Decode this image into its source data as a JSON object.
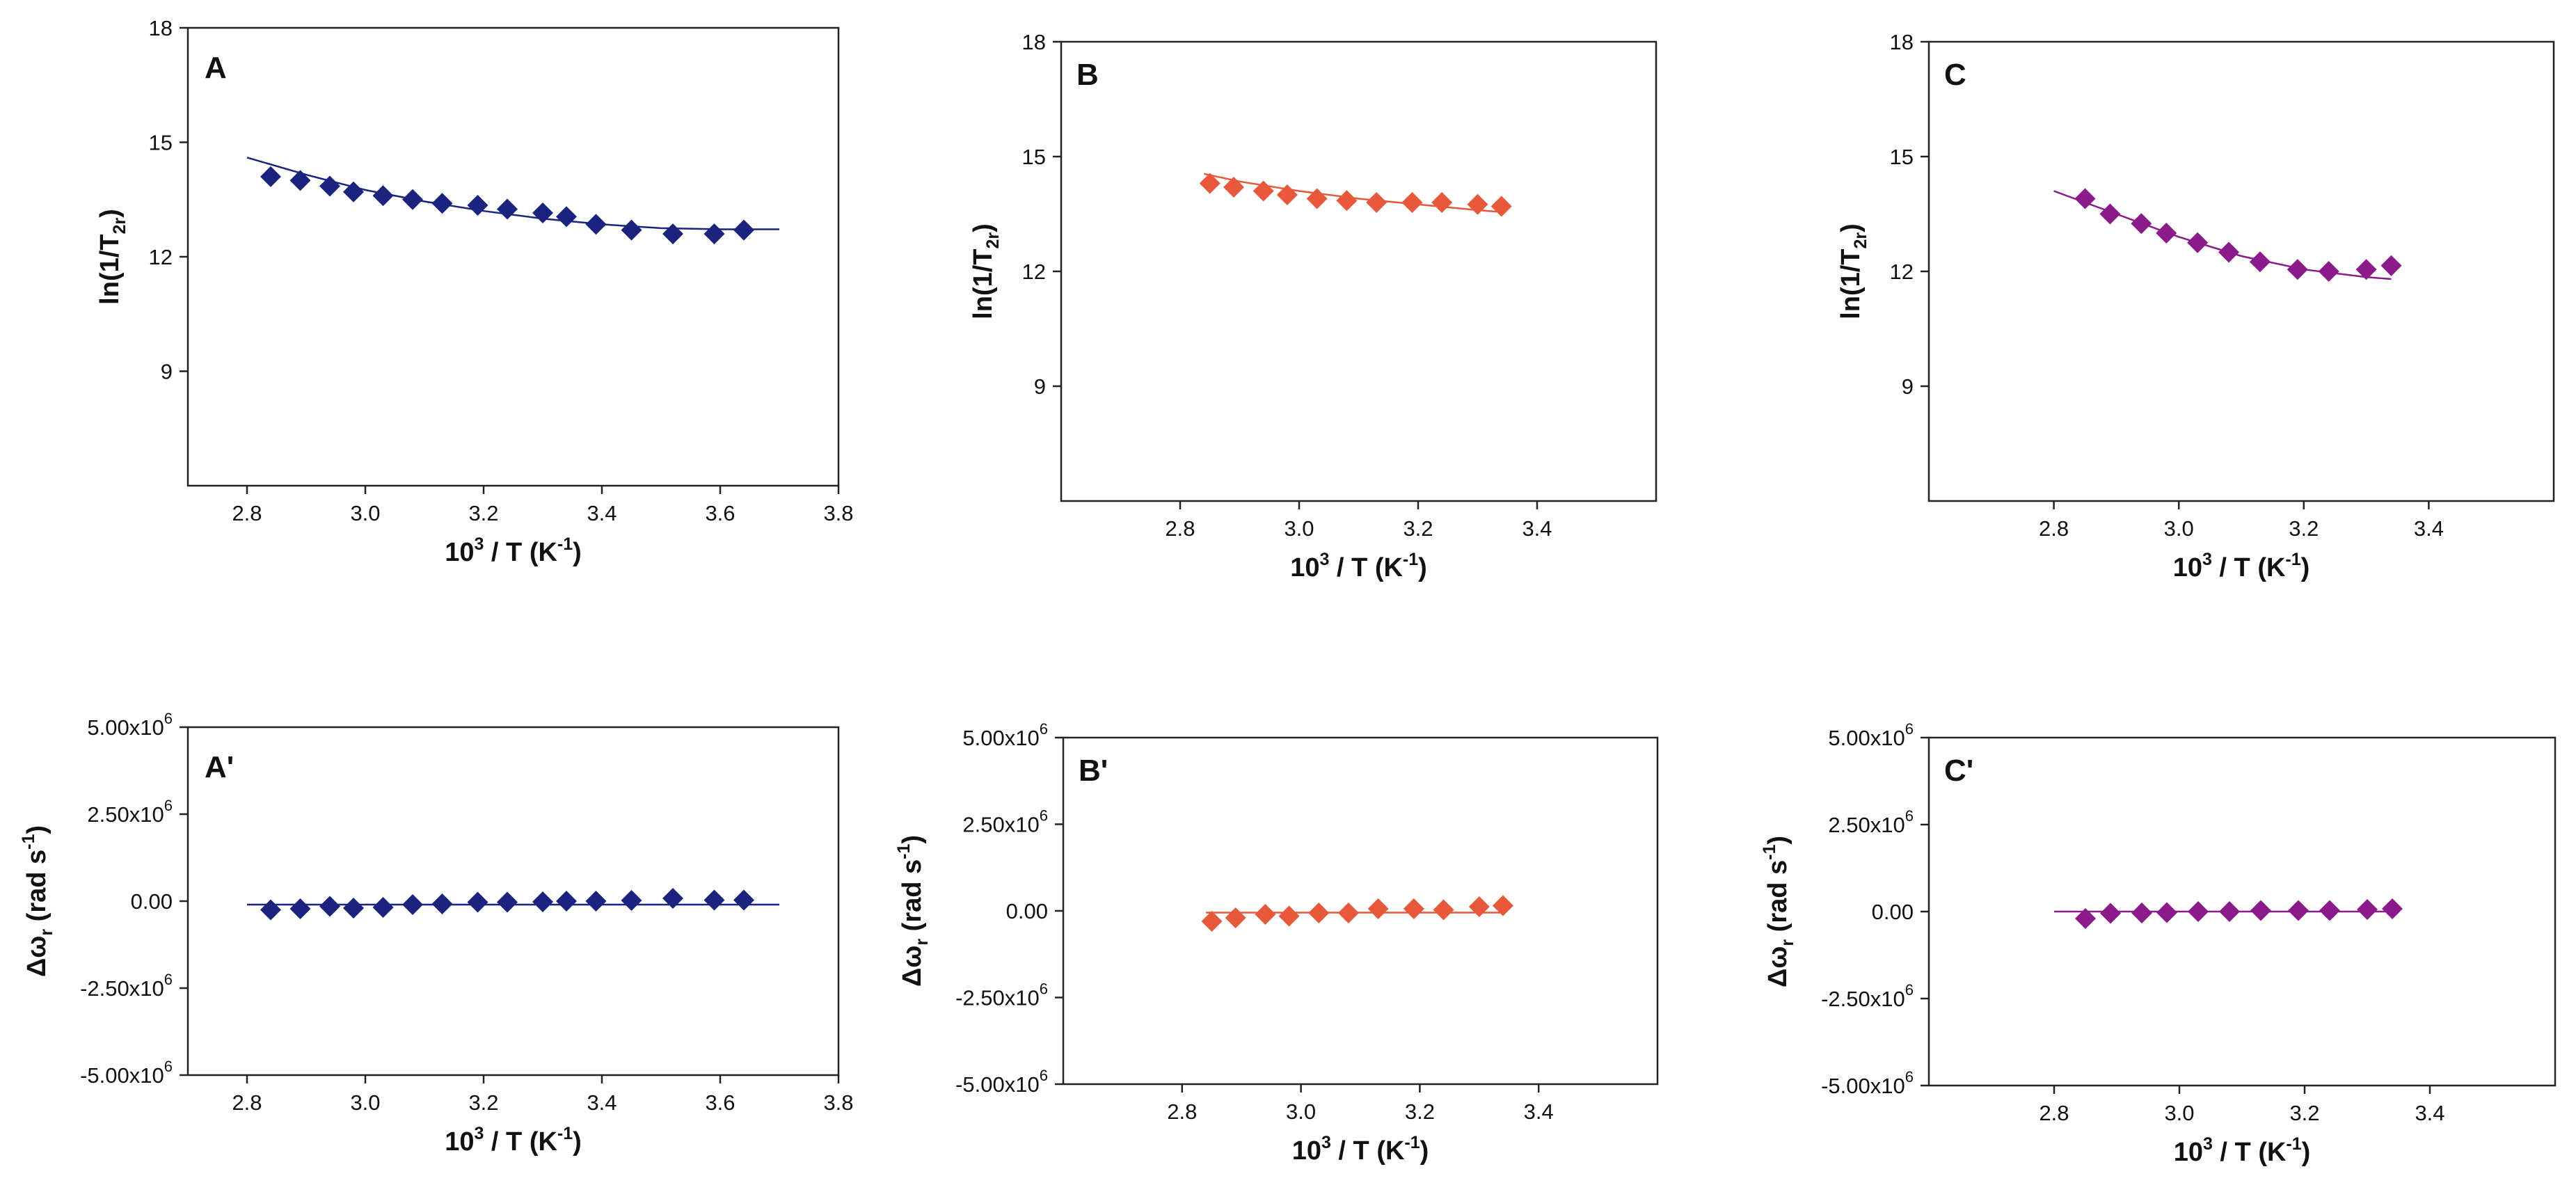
{
  "figure": {
    "x_label": {
      "main": "10",
      "sup": "3",
      "rest": " / T (K",
      "sup2": "-1",
      "end": ")"
    },
    "y_label_top": {
      "pre": "ln(1/T",
      "sub": "2r",
      "post": ")"
    },
    "y_label_bottom": {
      "pre": "Δω",
      "sub": "r",
      "post": " (rad s",
      "sup": "-1",
      "end": ")"
    }
  },
  "chart_data": [
    {
      "panel": "A",
      "type": "scatter",
      "color": "#1a237e",
      "xlim": [
        2.7,
        3.8
      ],
      "ylim": [
        6,
        18
      ],
      "xticks": [
        "2.8",
        "3.0",
        "3.2",
        "3.4",
        "3.6",
        "3.8"
      ],
      "xtick_values": [
        2.8,
        3.0,
        3.2,
        3.4,
        3.6,
        3.8
      ],
      "yticks": [
        "9",
        "12",
        "15",
        "18"
      ],
      "ytick_values": [
        9,
        12,
        15,
        18
      ],
      "x": [
        2.84,
        2.89,
        2.94,
        2.98,
        3.03,
        3.08,
        3.13,
        3.19,
        3.24,
        3.3,
        3.34,
        3.39,
        3.45,
        3.52,
        3.59,
        3.64
      ],
      "y": [
        14.1,
        14.0,
        13.85,
        13.7,
        13.6,
        13.5,
        13.4,
        13.35,
        13.25,
        13.15,
        13.05,
        12.85,
        12.7,
        12.6,
        12.6,
        12.7
      ],
      "fit": {
        "x": [
          2.8,
          2.9,
          3.0,
          3.1,
          3.2,
          3.3,
          3.4,
          3.5,
          3.6,
          3.7
        ],
        "y": [
          14.6,
          14.15,
          13.75,
          13.45,
          13.2,
          13.0,
          12.85,
          12.75,
          12.72,
          12.72
        ]
      }
    },
    {
      "panel": "B",
      "type": "scatter",
      "color": "#e8593c",
      "xlim": [
        2.6,
        3.6
      ],
      "ylim": [
        6,
        18
      ],
      "xticks": [
        "2.8",
        "3.0",
        "3.2",
        "3.4"
      ],
      "xtick_values": [
        2.8,
        3.0,
        3.2,
        3.4
      ],
      "yticks": [
        "9",
        "12",
        "15",
        "18"
      ],
      "ytick_values": [
        9,
        12,
        15,
        18
      ],
      "x": [
        2.85,
        2.89,
        2.94,
        2.98,
        3.03,
        3.08,
        3.13,
        3.19,
        3.24,
        3.3,
        3.34
      ],
      "y": [
        14.3,
        14.2,
        14.1,
        14.0,
        13.9,
        13.85,
        13.8,
        13.8,
        13.8,
        13.75,
        13.7
      ],
      "fit": {
        "x": [
          2.84,
          2.9,
          3.0,
          3.1,
          3.2,
          3.3,
          3.34
        ],
        "y": [
          14.55,
          14.35,
          14.1,
          13.9,
          13.75,
          13.6,
          13.55
        ]
      }
    },
    {
      "panel": "C",
      "type": "scatter",
      "color": "#8b1a8b",
      "xlim": [
        2.6,
        3.6
      ],
      "ylim": [
        6,
        18
      ],
      "xticks": [
        "2.8",
        "3.0",
        "3.2",
        "3.4"
      ],
      "xtick_values": [
        2.8,
        3.0,
        3.2,
        3.4
      ],
      "yticks": [
        "9",
        "12",
        "15",
        "18"
      ],
      "ytick_values": [
        9,
        12,
        15,
        18
      ],
      "x": [
        2.85,
        2.89,
        2.94,
        2.98,
        3.03,
        3.08,
        3.13,
        3.19,
        3.24,
        3.3,
        3.34
      ],
      "y": [
        13.9,
        13.5,
        13.25,
        13.0,
        12.75,
        12.5,
        12.25,
        12.05,
        12.0,
        12.05,
        12.15
      ],
      "fit": {
        "x": [
          2.8,
          2.9,
          3.0,
          3.1,
          3.2,
          3.3,
          3.34
        ],
        "y": [
          14.1,
          13.5,
          12.9,
          12.4,
          12.05,
          11.85,
          11.8
        ]
      }
    },
    {
      "panel": "A'",
      "type": "scatter",
      "color": "#1a237e",
      "xlim": [
        2.7,
        3.8
      ],
      "ylim": [
        -5000000,
        5000000
      ],
      "xticks": [
        "2.8",
        "3.0",
        "3.2",
        "3.4",
        "3.6",
        "3.8"
      ],
      "xtick_values": [
        2.8,
        3.0,
        3.2,
        3.4,
        3.6,
        3.8
      ],
      "yticks": [
        "-5.00x10",
        "-2.50x10",
        "0.00",
        "2.50x10",
        "5.00x10"
      ],
      "ytick_exp": [
        "6",
        "6",
        "",
        "6",
        "6"
      ],
      "ytick_values": [
        -5000000,
        -2500000,
        0,
        2500000,
        5000000
      ],
      "x": [
        2.84,
        2.89,
        2.94,
        2.98,
        3.03,
        3.08,
        3.13,
        3.19,
        3.24,
        3.3,
        3.34,
        3.39,
        3.45,
        3.52,
        3.59,
        3.64
      ],
      "y": [
        -250000,
        -220000,
        -150000,
        -200000,
        -180000,
        -100000,
        -80000,
        -30000,
        -30000,
        -20000,
        0,
        0,
        20000,
        80000,
        30000,
        30000
      ],
      "fit": {
        "x": [
          2.8,
          3.7
        ],
        "y": [
          -100000,
          -100000
        ]
      }
    },
    {
      "panel": "B'",
      "type": "scatter",
      "color": "#e8593c",
      "xlim": [
        2.6,
        3.6
      ],
      "ylim": [
        -5000000,
        5000000
      ],
      "xticks": [
        "2.8",
        "3.0",
        "3.2",
        "3.4"
      ],
      "xtick_values": [
        2.8,
        3.0,
        3.2,
        3.4
      ],
      "yticks": [
        "-5.00x10",
        "-2.50x10",
        "0.00",
        "2.50x10",
        "5.00x10"
      ],
      "ytick_exp": [
        "6",
        "6",
        "",
        "6",
        "6"
      ],
      "ytick_values": [
        -5000000,
        -2500000,
        0,
        2500000,
        5000000
      ],
      "x": [
        2.85,
        2.89,
        2.94,
        2.98,
        3.03,
        3.08,
        3.13,
        3.19,
        3.24,
        3.3,
        3.34
      ],
      "y": [
        -300000,
        -200000,
        -100000,
        -150000,
        -60000,
        -60000,
        60000,
        60000,
        30000,
        120000,
        150000
      ],
      "fit": {
        "x": [
          2.84,
          3.34
        ],
        "y": [
          -50000,
          -50000
        ]
      }
    },
    {
      "panel": "C'",
      "type": "scatter",
      "color": "#8b1a8b",
      "xlim": [
        2.6,
        3.6
      ],
      "ylim": [
        -5000000,
        5000000
      ],
      "xticks": [
        "2.8",
        "3.0",
        "3.2",
        "3.4"
      ],
      "xtick_values": [
        2.8,
        3.0,
        3.2,
        3.4
      ],
      "yticks": [
        "-5.00x10",
        "-2.50x10",
        "0.00",
        "2.50x10",
        "5.00x10"
      ],
      "ytick_exp": [
        "6",
        "6",
        "",
        "6",
        "6"
      ],
      "ytick_values": [
        -5000000,
        -2500000,
        0,
        2500000,
        5000000
      ],
      "x": [
        2.85,
        2.89,
        2.94,
        2.98,
        3.03,
        3.08,
        3.13,
        3.19,
        3.24,
        3.3,
        3.34
      ],
      "y": [
        -200000,
        -50000,
        -40000,
        -30000,
        0,
        0,
        30000,
        30000,
        30000,
        60000,
        80000
      ],
      "fit": {
        "x": [
          2.8,
          3.34
        ],
        "y": [
          0,
          0
        ]
      }
    }
  ]
}
